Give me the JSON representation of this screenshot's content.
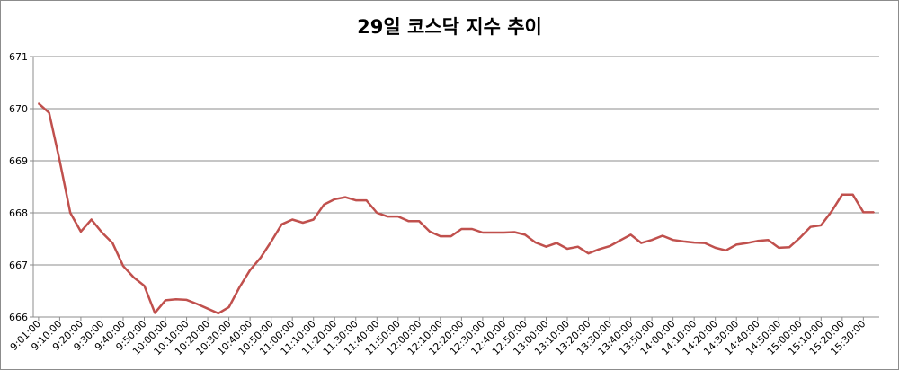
{
  "chart_data": {
    "type": "line",
    "title": "29일 코스닥 지수 추이",
    "xlabel": "",
    "ylabel": "",
    "ylim": [
      666,
      671
    ],
    "yticks": [
      666,
      667,
      668,
      669,
      670,
      671
    ],
    "grid": true,
    "legend": "none",
    "line_color": "#c0504d",
    "x": [
      "9:01:00",
      "9:05:00",
      "9:10:00",
      "9:15:00",
      "9:20:00",
      "9:25:00",
      "9:30:00",
      "9:35:00",
      "9:40:00",
      "9:45:00",
      "9:50:00",
      "9:55:00",
      "10:00:00",
      "10:05:00",
      "10:10:00",
      "10:15:00",
      "10:20:00",
      "10:25:00",
      "10:30:00",
      "10:35:00",
      "10:40:00",
      "10:45:00",
      "10:50:00",
      "10:55:00",
      "11:00:00",
      "11:05:00",
      "11:10:00",
      "11:15:00",
      "11:20:00",
      "11:25:00",
      "11:30:00",
      "11:35:00",
      "11:40:00",
      "11:45:00",
      "11:50:00",
      "11:55:00",
      "12:00:00",
      "12:05:00",
      "12:10:00",
      "12:15:00",
      "12:20:00",
      "12:25:00",
      "12:30:00",
      "12:35:00",
      "12:40:00",
      "12:45:00",
      "12:50:00",
      "12:55:00",
      "13:00:00",
      "13:05:00",
      "13:10:00",
      "13:15:00",
      "13:20:00",
      "13:25:00",
      "13:30:00",
      "13:35:00",
      "13:40:00",
      "13:45:00",
      "13:50:00",
      "13:55:00",
      "14:00:00",
      "14:05:00",
      "14:10:00",
      "14:15:00",
      "14:20:00",
      "14:25:00",
      "14:30:00",
      "14:35:00",
      "14:40:00",
      "14:45:00",
      "14:50:00",
      "14:55:00",
      "15:00:00",
      "15:05:00",
      "15:10:00",
      "15:15:00",
      "15:20:00",
      "15:25:00",
      "15:30:00",
      "15:35:00"
    ],
    "tick_labels": [
      "9:01:00",
      "9:10:00",
      "9:20:00",
      "9:30:00",
      "9:40:00",
      "9:50:00",
      "10:00:00",
      "10:10:00",
      "10:20:00",
      "10:30:00",
      "10:40:00",
      "10:50:00",
      "11:00:00",
      "11:10:00",
      "11:20:00",
      "11:30:00",
      "11:40:00",
      "11:50:00",
      "12:00:00",
      "12:10:00",
      "12:20:00",
      "12:30:00",
      "12:40:00",
      "12:50:00",
      "13:00:00",
      "13:10:00",
      "13:20:00",
      "13:30:00",
      "13:40:00",
      "13:50:00",
      "14:00:00",
      "14:10:00",
      "14:20:00",
      "14:30:00",
      "14:40:00",
      "14:50:00",
      "15:00:00",
      "15:10:00",
      "15:20:00",
      "15:30:00"
    ],
    "series": [
      {
        "values": [
          670.1,
          669.92,
          669.0,
          668.0,
          667.64,
          667.87,
          667.62,
          667.42,
          666.98,
          666.76,
          666.6,
          666.08,
          666.32,
          666.34,
          666.33,
          666.25,
          666.16,
          666.07,
          666.19,
          666.57,
          666.9,
          667.14,
          667.45,
          667.78,
          667.87,
          667.81,
          667.87,
          668.16,
          668.26,
          668.3,
          668.24,
          668.24,
          668.0,
          667.93,
          667.93,
          667.84,
          667.84,
          667.64,
          667.55,
          667.55,
          667.69,
          667.69,
          667.62,
          667.62,
          667.62,
          667.63,
          667.58,
          667.43,
          667.35,
          667.42,
          667.31,
          667.35,
          667.22,
          667.3,
          667.36,
          667.47,
          667.58,
          667.42,
          667.48,
          667.56,
          667.48,
          667.45,
          667.43,
          667.42,
          667.33,
          667.28,
          667.39,
          667.42,
          667.46,
          667.48,
          667.33,
          667.34,
          667.52,
          667.73,
          667.76,
          668.03,
          668.35,
          668.35,
          668.01,
          668.01
        ]
      }
    ]
  }
}
